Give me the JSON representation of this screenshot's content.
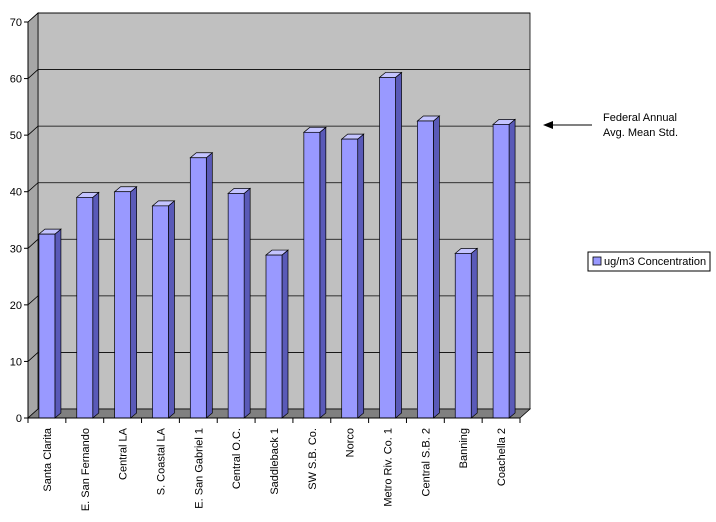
{
  "chart_data": {
    "type": "bar",
    "style": "3d-column",
    "categories": [
      "Santa Clarita",
      "E. San Fernando",
      "Central LA",
      "S. Coastal LA",
      "E. San Gabriel 1",
      "Central O.C.",
      "Saddleback 1",
      "SW S.B. Co.",
      "Norco",
      "Metro Riv. Co. 1",
      "Central S.B. 2",
      "Banning",
      "Coachella 2"
    ],
    "series": [
      {
        "name": "ug/m3 Concentration",
        "values": [
          32.5,
          39,
          40,
          37.5,
          46,
          39.7,
          28.8,
          50.5,
          49.3,
          60.2,
          52.5,
          29.1,
          51.9
        ]
      }
    ],
    "ylim": [
      0,
      70
    ],
    "yticks": [
      0,
      10,
      20,
      30,
      40,
      50,
      60,
      70
    ],
    "grid": true,
    "legend_position": "right",
    "colors": {
      "bar_front": "#9999ff",
      "bar_side": "#5a5ab8",
      "bar_top": "#c4c4ff",
      "plot_back": "#c0c0c0",
      "floor": "#808080",
      "gridline": "#000000"
    },
    "annotation": {
      "text_line1": "Federal Annual",
      "text_line2": "Avg. Mean Std.",
      "value": 51.5
    }
  }
}
